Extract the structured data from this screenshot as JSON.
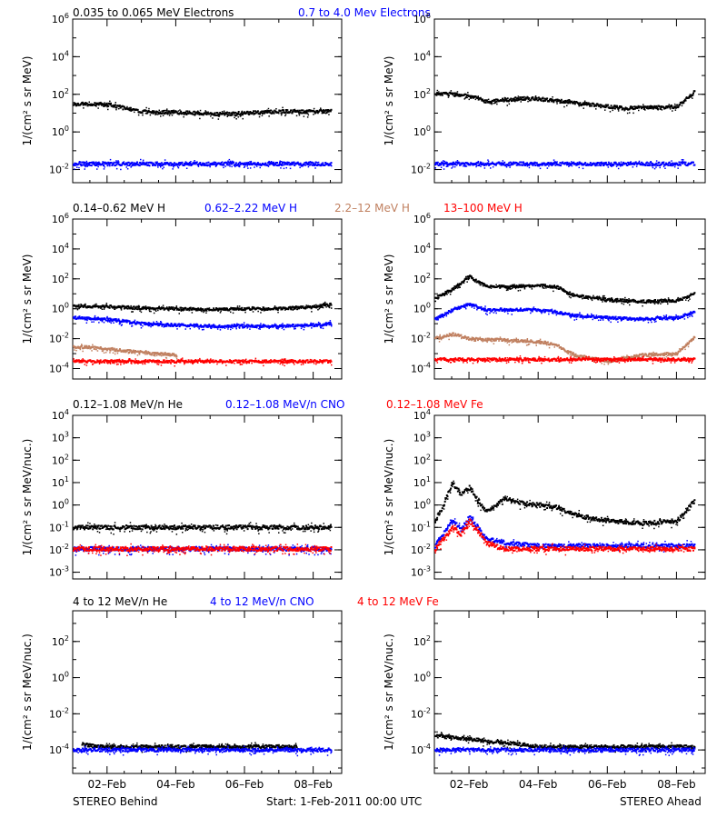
{
  "footer": {
    "left": "STEREO Behind",
    "center": "Start:  1-Feb-2011 00:00 UTC",
    "right": "STEREO Ahead"
  },
  "colors": {
    "black": "#000000",
    "blue": "#0000ff",
    "tan": "#c08060",
    "red": "#ff0000"
  },
  "chart_data": [
    {
      "row": "electrons",
      "type": "scatter",
      "legend": [
        {
          "text": "0.035 to 0.065 MeV Electrons",
          "color": "#000000"
        },
        {
          "text": "0.7 to 4.0 Mev Electrons",
          "color": "#0000ff"
        }
      ],
      "ylabel": "1/(cm² s sr MeV)",
      "ylog": true,
      "ylim": [
        0.002,
        1000000
      ],
      "yticks": [
        "10⁻²",
        "10⁰",
        "10²",
        "10⁴",
        "10⁶"
      ],
      "xlabel": "",
      "xticks": [
        "02–Feb",
        "04–Feb",
        "06–Feb",
        "08–Feb"
      ],
      "panels": [
        {
          "spacecraft": "STEREO Behind",
          "series": [
            {
              "color": "#000000",
              "x": [
                "01-Feb 00:00",
                "01-Feb 12:00",
                "02-Feb 00:00",
                "02-Feb 12:00",
                "03-Feb 00:00",
                "03-Feb 12:00",
                "04-Feb 00:00",
                "04-Feb 12:00",
                "05-Feb 00:00",
                "05-Feb 12:00",
                "06-Feb 00:00",
                "06-Feb 12:00",
                "07-Feb 00:00",
                "07-Feb 12:00",
                "08-Feb 00:00",
                "08-Feb 12:00"
              ],
              "y": [
                30,
                30,
                28,
                18,
                12,
                11,
                11,
                10,
                9,
                9,
                10,
                11,
                12,
                12,
                12,
                13
              ]
            },
            {
              "color": "#0000ff",
              "x": [
                "01-Feb 00:00",
                "02-Feb 00:00",
                "03-Feb 00:00",
                "04-Feb 00:00",
                "05-Feb 00:00",
                "06-Feb 00:00",
                "07-Feb 00:00",
                "08-Feb 00:00",
                "08-Feb 12:00"
              ],
              "y": [
                0.02,
                0.02,
                0.02,
                0.02,
                0.02,
                0.02,
                0.02,
                0.02,
                0.02
              ]
            }
          ]
        },
        {
          "spacecraft": "STEREO Ahead",
          "series": [
            {
              "color": "#000000",
              "x": [
                "01-Feb 00:00",
                "01-Feb 12:00",
                "02-Feb 00:00",
                "02-Feb 12:00",
                "03-Feb 00:00",
                "03-Feb 12:00",
                "04-Feb 00:00",
                "04-Feb 12:00",
                "05-Feb 00:00",
                "05-Feb 12:00",
                "06-Feb 00:00",
                "06-Feb 12:00",
                "07-Feb 00:00",
                "07-Feb 12:00",
                "08-Feb 00:00",
                "08-Feb 12:00"
              ],
              "y": [
                110,
                100,
                80,
                40,
                50,
                60,
                55,
                45,
                35,
                28,
                22,
                18,
                20,
                20,
                22,
                130
              ]
            },
            {
              "color": "#0000ff",
              "x": [
                "01-Feb 00:00",
                "02-Feb 00:00",
                "03-Feb 00:00",
                "04-Feb 00:00",
                "05-Feb 00:00",
                "06-Feb 00:00",
                "07-Feb 00:00",
                "08-Feb 00:00",
                "08-Feb 12:00"
              ],
              "y": [
                0.02,
                0.02,
                0.02,
                0.02,
                0.02,
                0.02,
                0.02,
                0.02,
                0.02
              ]
            }
          ]
        }
      ]
    },
    {
      "row": "protons",
      "type": "scatter",
      "legend": [
        {
          "text": "0.14–0.62 MeV H",
          "color": "#000000"
        },
        {
          "text": "0.62–2.22 MeV H",
          "color": "#0000ff"
        },
        {
          "text": "2.2–12 MeV H",
          "color": "#c08060"
        },
        {
          "text": "13–100 MeV H",
          "color": "#ff0000"
        }
      ],
      "ylabel": "1/(cm² s sr MeV)",
      "ylog": true,
      "ylim": [
        2e-05,
        1000000
      ],
      "yticks": [
        "10⁻⁴",
        "10⁻²",
        "10⁰",
        "10²",
        "10⁴",
        "10⁶"
      ],
      "xlabel": "",
      "xticks": [
        "02–Feb",
        "04–Feb",
        "06–Feb",
        "08–Feb"
      ],
      "panels": [
        {
          "spacecraft": "STEREO Behind",
          "series": [
            {
              "color": "#000000",
              "x": [
                "01-Feb 00:00",
                "02-Feb 00:00",
                "03-Feb 00:00",
                "04-Feb 00:00",
                "05-Feb 00:00",
                "06-Feb 00:00",
                "07-Feb 00:00",
                "08-Feb 00:00",
                "08-Feb 12:00"
              ],
              "y": [
                1.5,
                1.4,
                1.1,
                1.0,
                0.9,
                1.0,
                1.0,
                1.3,
                2.0
              ]
            },
            {
              "color": "#0000ff",
              "x": [
                "01-Feb 00:00",
                "02-Feb 00:00",
                "03-Feb 00:00",
                "04-Feb 00:00",
                "05-Feb 00:00",
                "06-Feb 00:00",
                "07-Feb 00:00",
                "08-Feb 00:00",
                "08-Feb 12:00"
              ],
              "y": [
                0.25,
                0.2,
                0.1,
                0.08,
                0.07,
                0.07,
                0.07,
                0.08,
                0.1
              ]
            },
            {
              "color": "#c08060",
              "x": [
                "01-Feb 00:00",
                "01-Feb 12:00",
                "02-Feb 00:00",
                "02-Feb 12:00",
                "03-Feb 00:00",
                "03-Feb 12:00",
                "04-Feb 00:00"
              ],
              "y": [
                0.003,
                0.0025,
                0.002,
                0.0015,
                0.0012,
                0.001,
                0.0008
              ]
            },
            {
              "color": "#ff0000",
              "x": [
                "01-Feb 00:00",
                "02-Feb 00:00",
                "03-Feb 00:00",
                "04-Feb 00:00",
                "05-Feb 00:00",
                "06-Feb 00:00",
                "07-Feb 00:00",
                "08-Feb 00:00",
                "08-Feb 12:00"
              ],
              "y": [
                0.0003,
                0.0003,
                0.0003,
                0.0003,
                0.0003,
                0.0003,
                0.0003,
                0.0003,
                0.0003
              ]
            }
          ]
        },
        {
          "spacecraft": "STEREO Ahead",
          "series": [
            {
              "color": "#000000",
              "x": [
                "01-Feb 00:00",
                "01-Feb 12:00",
                "02-Feb 00:00",
                "02-Feb 06:00",
                "02-Feb 12:00",
                "03-Feb 00:00",
                "04-Feb 00:00",
                "04-Feb 12:00",
                "05-Feb 00:00",
                "06-Feb 00:00",
                "07-Feb 00:00",
                "08-Feb 00:00",
                "08-Feb 12:00"
              ],
              "y": [
                5,
                20,
                150,
                60,
                30,
                30,
                35,
                30,
                8,
                4,
                3,
                3.5,
                10
              ]
            },
            {
              "color": "#0000ff",
              "x": [
                "01-Feb 00:00",
                "01-Feb 12:00",
                "02-Feb 00:00",
                "02-Feb 12:00",
                "03-Feb 00:00",
                "04-Feb 00:00",
                "04-Feb 12:00",
                "05-Feb 00:00",
                "06-Feb 00:00",
                "07-Feb 00:00",
                "08-Feb 00:00",
                "08-Feb 12:00"
              ],
              "y": [
                0.2,
                0.8,
                2.0,
                0.8,
                0.9,
                0.8,
                0.6,
                0.35,
                0.25,
                0.2,
                0.25,
                0.6
              ]
            },
            {
              "color": "#c08060",
              "x": [
                "01-Feb 00:00",
                "01-Feb 12:00",
                "02-Feb 00:00",
                "03-Feb 00:00",
                "04-Feb 00:00",
                "04-Feb 12:00",
                "05-Feb 00:00",
                "05-Feb 12:00",
                "06-Feb 00:00",
                "07-Feb 00:00",
                "08-Feb 00:00",
                "08-Feb 12:00"
              ],
              "y": [
                0.01,
                0.02,
                0.01,
                0.008,
                0.006,
                0.004,
                0.0008,
                0.0005,
                0.0003,
                0.0008,
                0.001,
                0.012
              ]
            },
            {
              "color": "#ff0000",
              "x": [
                "01-Feb 00:00",
                "02-Feb 00:00",
                "03-Feb 00:00",
                "04-Feb 00:00",
                "05-Feb 00:00",
                "06-Feb 00:00",
                "07-Feb 00:00",
                "08-Feb 00:00",
                "08-Feb 12:00"
              ],
              "y": [
                0.0004,
                0.0004,
                0.0004,
                0.0004,
                0.0004,
                0.0004,
                0.0004,
                0.0004,
                0.0004
              ]
            }
          ]
        }
      ]
    },
    {
      "row": "low-energy-ions",
      "type": "scatter",
      "legend": [
        {
          "text": "0.12–1.08 MeV/n He",
          "color": "#000000"
        },
        {
          "text": "0.12–1.08 MeV/n CNO",
          "color": "#0000ff"
        },
        {
          "text": "0.12–1.08 MeV Fe",
          "color": "#ff0000"
        }
      ],
      "ylabel": "1/(cm² s sr MeV/nuc.)",
      "ylog": true,
      "ylim": [
        0.0005,
        10000
      ],
      "yticks": [
        "10⁻³",
        "10⁻²",
        "10⁻¹",
        "10⁰",
        "10¹",
        "10²",
        "10³",
        "10⁴"
      ],
      "xlabel": "",
      "xticks": [
        "02–Feb",
        "04–Feb",
        "06–Feb",
        "08–Feb"
      ],
      "panels": [
        {
          "spacecraft": "STEREO Behind",
          "series": [
            {
              "color": "#000000",
              "x": [
                "01-Feb 00:00",
                "02-Feb 00:00",
                "03-Feb 00:00",
                "04-Feb 00:00",
                "05-Feb 00:00",
                "06-Feb 00:00",
                "07-Feb 00:00",
                "08-Feb 00:00",
                "08-Feb 12:00"
              ],
              "y": [
                0.1,
                0.1,
                0.1,
                0.1,
                0.1,
                0.1,
                0.1,
                0.1,
                0.1
              ]
            },
            {
              "color": "#0000ff",
              "x": [
                "01-Feb 00:00",
                "02-Feb 00:00",
                "03-Feb 00:00",
                "04-Feb 00:00",
                "05-Feb 00:00",
                "06-Feb 00:00",
                "07-Feb 00:00",
                "08-Feb 00:00",
                "08-Feb 12:00"
              ],
              "y": [
                0.011,
                0.011,
                0.011,
                0.011,
                0.011,
                0.011,
                0.011,
                0.011,
                0.011
              ]
            },
            {
              "color": "#ff0000",
              "x": [
                "01-Feb 00:00",
                "02-Feb 00:00",
                "03-Feb 00:00",
                "04-Feb 00:00",
                "05-Feb 00:00",
                "06-Feb 00:00",
                "07-Feb 00:00",
                "08-Feb 00:00",
                "08-Feb 12:00"
              ],
              "y": [
                0.011,
                0.011,
                0.011,
                0.011,
                0.011,
                0.011,
                0.011,
                0.011,
                0.011
              ]
            }
          ]
        },
        {
          "spacecraft": "STEREO Ahead",
          "series": [
            {
              "color": "#000000",
              "x": [
                "01-Feb 00:00",
                "01-Feb 06:00",
                "01-Feb 12:00",
                "01-Feb 18:00",
                "02-Feb 00:00",
                "02-Feb 06:00",
                "02-Feb 12:00",
                "03-Feb 00:00",
                "03-Feb 12:00",
                "04-Feb 00:00",
                "04-Feb 12:00",
                "05-Feb 00:00",
                "05-Feb 12:00",
                "06-Feb 00:00",
                "07-Feb 00:00",
                "08-Feb 00:00",
                "08-Feb 12:00"
              ],
              "y": [
                0.2,
                1.0,
                10,
                3,
                6,
                1.5,
                0.5,
                2.0,
                1.2,
                1.0,
                0.8,
                0.4,
                0.25,
                0.2,
                0.15,
                0.2,
                1.5
              ]
            },
            {
              "color": "#0000ff",
              "x": [
                "01-Feb 00:00",
                "01-Feb 12:00",
                "01-Feb 18:00",
                "02-Feb 00:00",
                "02-Feb 12:00",
                "03-Feb 00:00",
                "04-Feb 00:00",
                "05-Feb 00:00",
                "06-Feb 00:00",
                "07-Feb 00:00",
                "08-Feb 00:00",
                "08-Feb 12:00"
              ],
              "y": [
                0.015,
                0.2,
                0.08,
                0.3,
                0.03,
                0.02,
                0.015,
                0.015,
                0.015,
                0.015,
                0.015,
                0.015
              ]
            },
            {
              "color": "#ff0000",
              "x": [
                "01-Feb 00:00",
                "01-Feb 12:00",
                "01-Feb 18:00",
                "02-Feb 00:00",
                "02-Feb 12:00",
                "03-Feb 00:00",
                "04-Feb 00:00",
                "05-Feb 00:00",
                "06-Feb 00:00",
                "07-Feb 00:00",
                "08-Feb 00:00",
                "08-Feb 12:00"
              ],
              "y": [
                0.011,
                0.1,
                0.05,
                0.2,
                0.02,
                0.011,
                0.011,
                0.011,
                0.011,
                0.011,
                0.011,
                0.011
              ]
            }
          ]
        }
      ]
    },
    {
      "row": "high-energy-ions",
      "type": "scatter",
      "legend": [
        {
          "text": "4 to 12 MeV/n He",
          "color": "#000000"
        },
        {
          "text": "4 to 12 MeV/n CNO",
          "color": "#0000ff"
        },
        {
          "text": "4 to 12 MeV Fe",
          "color": "#ff0000"
        }
      ],
      "ylabel": "1/(cm² s sr MeV/nuc.)",
      "ylog": true,
      "ylim": [
        5e-06,
        5000
      ],
      "yticks": [
        "10⁻⁴",
        "10⁻²",
        "10⁰",
        "10²"
      ],
      "xlabel": "",
      "xticks": [
        "02–Feb",
        "04–Feb",
        "06–Feb",
        "08–Feb"
      ],
      "panels": [
        {
          "spacecraft": "STEREO Behind",
          "series": [
            {
              "color": "#000000",
              "x": [
                "01-Feb 06:00",
                "01-Feb 18:00",
                "03-Feb 00:00",
                "03-Feb 12:00",
                "05-Feb 00:00",
                "05-Feb 12:00",
                "06-Feb 12:00",
                "07-Feb 00:00",
                "07-Feb 12:00"
              ],
              "y": [
                0.0002,
                0.00015,
                0.00015,
                0.00015,
                0.00015,
                0.00015,
                0.00015,
                0.00015,
                0.00015
              ]
            },
            {
              "color": "#0000ff",
              "x": [
                "01-Feb 00:00",
                "02-Feb 00:00",
                "03-Feb 00:00",
                "04-Feb 00:00",
                "05-Feb 00:00",
                "06-Feb 00:00",
                "07-Feb 00:00",
                "08-Feb 00:00",
                "08-Feb 12:00"
              ],
              "y": [
                0.0001,
                0.0001,
                0.0001,
                0.0001,
                0.0001,
                0.0001,
                0.0001,
                0.0001,
                0.0001
              ]
            }
          ]
        },
        {
          "spacecraft": "STEREO Ahead",
          "series": [
            {
              "color": "#000000",
              "x": [
                "01-Feb 00:00",
                "01-Feb 12:00",
                "02-Feb 00:00",
                "02-Feb 12:00",
                "03-Feb 00:00",
                "03-Feb 12:00",
                "04-Feb 00:00",
                "08-Feb 12:00"
              ],
              "y": [
                0.0006,
                0.0005,
                0.0004,
                0.0003,
                0.00025,
                0.0002,
                0.00015,
                0.00015
              ]
            },
            {
              "color": "#0000ff",
              "x": [
                "01-Feb 00:00",
                "02-Feb 00:00",
                "03-Feb 00:00",
                "04-Feb 00:00",
                "05-Feb 00:00",
                "06-Feb 00:00",
                "07-Feb 00:00",
                "08-Feb 00:00",
                "08-Feb 12:00"
              ],
              "y": [
                0.0001,
                0.0001,
                0.0001,
                0.0001,
                0.0001,
                0.0001,
                0.0001,
                0.0001,
                0.0001
              ]
            }
          ]
        }
      ]
    }
  ]
}
